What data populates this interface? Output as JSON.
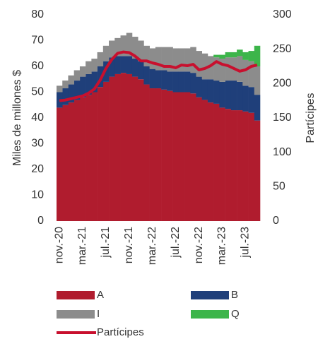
{
  "chart_data": {
    "type": "bar",
    "stacked": true,
    "ylabel": "Miles de millones $",
    "y2label": "Partícipes",
    "categories": [
      "nov.-20",
      null,
      null,
      null,
      "mar.-21",
      null,
      null,
      null,
      "jul.-21",
      null,
      null,
      null,
      "nov.-21",
      null,
      null,
      null,
      "mar.-22",
      null,
      null,
      null,
      "jul.-22",
      null,
      null,
      null,
      "nov.-22",
      null,
      null,
      null,
      "mar.-23",
      null,
      null,
      null,
      "jul.-23",
      null,
      null
    ],
    "ylim": [
      0,
      80
    ],
    "yticks": [
      0,
      10,
      20,
      30,
      40,
      50,
      60,
      70,
      80
    ],
    "y2lim": [
      0,
      300
    ],
    "y2ticks": [
      0,
      50,
      100,
      150,
      200,
      250,
      300
    ],
    "series": [
      {
        "name": "A",
        "color": "#b01c2e",
        "values": [
          44,
          45,
          46,
          47,
          48,
          49,
          50,
          52,
          54,
          56,
          57,
          57.5,
          57,
          56,
          55,
          53,
          51.5,
          51.5,
          51,
          50.5,
          50,
          50,
          50,
          49.5,
          48,
          47,
          46,
          45.5,
          44,
          43.5,
          43,
          43,
          42.5,
          42,
          39
        ]
      },
      {
        "name": "B",
        "color": "#1f3f7a",
        "values": [
          6,
          6.5,
          7,
          7.5,
          8,
          8,
          8,
          8,
          8,
          7.5,
          7,
          6.5,
          7,
          7,
          7,
          7,
          7.5,
          7,
          7.5,
          7.5,
          8,
          8,
          8,
          8,
          8,
          8,
          9,
          9,
          10,
          11,
          11.5,
          11,
          10,
          10,
          10
        ]
      },
      {
        "name": "I",
        "color": "#8c8c8c",
        "values": [
          2.5,
          3,
          3.5,
          4,
          4,
          5,
          5,
          5.5,
          6,
          6.5,
          7,
          8,
          9,
          8.5,
          8,
          8,
          8,
          9,
          9,
          9.5,
          9,
          9,
          9,
          10,
          10,
          10,
          9,
          9,
          9,
          9,
          9,
          10,
          10,
          10,
          11
        ]
      },
      {
        "name": "Q",
        "color": "#3cb54a",
        "values": [
          0,
          0,
          0,
          0,
          0,
          0,
          0,
          0,
          0,
          0,
          0,
          0,
          0,
          0,
          0,
          0,
          0,
          0,
          0,
          0,
          0,
          0,
          0,
          0,
          0,
          0,
          0,
          1,
          1.5,
          2,
          2,
          2.5,
          3,
          4,
          8
        ]
      },
      {
        "name": "Partícipes",
        "type": "line",
        "axis": "y2",
        "color": "#c8102e",
        "values": [
          175,
          176,
          178,
          180,
          182,
          186,
          192,
          205,
          222,
          235,
          244,
          246,
          245,
          240,
          233,
          233,
          230,
          228,
          225,
          225,
          223,
          227,
          226,
          228,
          220,
          222,
          226,
          232,
          228,
          226,
          222,
          218,
          220,
          225,
          227
        ]
      }
    ]
  }
}
